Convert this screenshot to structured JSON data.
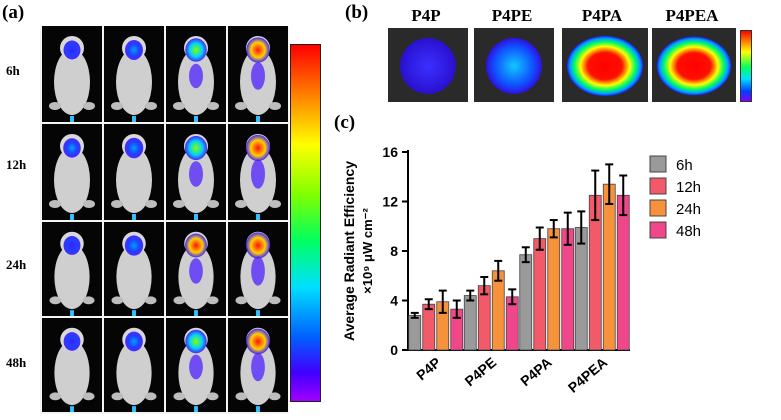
{
  "panel_labels": {
    "a": "(a)",
    "b": "(b)",
    "c": "(c)"
  },
  "groups": [
    "P4P",
    "P4PE",
    "P4PA",
    "P4PEA"
  ],
  "time_points": [
    "6h",
    "12h",
    "24h",
    "48h"
  ],
  "intensity": {
    "P4P": [
      0.25,
      0.3,
      0.28,
      0.26
    ],
    "P4PE": [
      0.33,
      0.38,
      0.4,
      0.34
    ],
    "P4PA": [
      0.62,
      0.68,
      0.7,
      0.66
    ],
    "P4PEA": [
      0.78,
      0.86,
      0.9,
      0.86
    ]
  },
  "exvivo_intensity": [
    0.18,
    0.35,
    0.92,
    0.95
  ],
  "chart_data": {
    "type": "bar",
    "ylabel_line1": "Average Radiant Efficiency",
    "ylabel_line2": "×10⁹ μW cm⁻²",
    "categories": [
      "P4P",
      "P4PE",
      "P4PA",
      "P4PEA"
    ],
    "ylim": [
      0,
      16
    ],
    "yticks": [
      "0",
      "4",
      "8",
      "12",
      "16"
    ],
    "legend_position": "top-right",
    "series": [
      {
        "name": "6h",
        "color": "#9a9a9a",
        "values": [
          2.8,
          4.4,
          7.7,
          9.9
        ],
        "errors": [
          0.2,
          0.4,
          0.6,
          1.3
        ]
      },
      {
        "name": "12h",
        "color": "#f25a6a",
        "values": [
          3.7,
          5.2,
          9.0,
          12.5
        ],
        "errors": [
          0.4,
          0.7,
          0.9,
          2.0
        ]
      },
      {
        "name": "24h",
        "color": "#f7923c",
        "values": [
          3.9,
          6.4,
          9.8,
          13.4
        ],
        "errors": [
          0.9,
          0.8,
          0.7,
          1.6
        ]
      },
      {
        "name": "48h",
        "color": "#f0468a",
        "values": [
          3.3,
          4.3,
          9.8,
          12.5
        ],
        "errors": [
          0.7,
          0.6,
          1.3,
          1.6
        ]
      }
    ]
  }
}
